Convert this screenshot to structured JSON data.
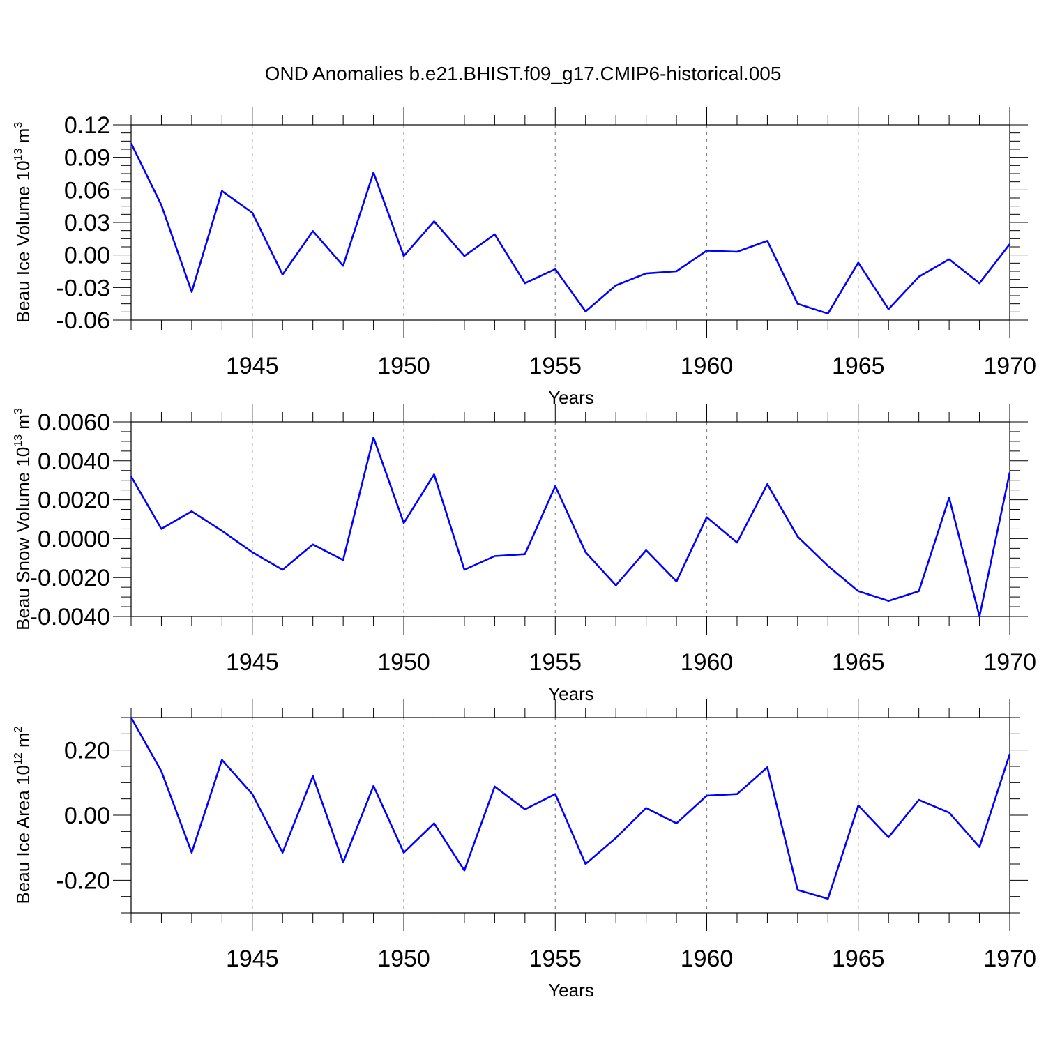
{
  "title": "OND Anomalies b.e21.BHIST.f09_g17.CMIP6-historical.005",
  "colors": {
    "line": "#0000ff",
    "axis": "#000000",
    "grid": "#888888"
  },
  "chart_data": [
    {
      "type": "line",
      "name": "ice-volume",
      "ylabel": "Beau Ice Volume 10",
      "ylabel_exp": "13",
      "ylabel_unit": " m",
      "ylabel_unit_exp": "3",
      "xlabel": "Years",
      "xlim": [
        1941,
        1970
      ],
      "ylim": [
        -0.06,
        0.12
      ],
      "yticks": [
        0.12,
        0.09,
        0.06,
        0.03,
        0.0,
        -0.03,
        -0.06
      ],
      "ytick_labels": [
        "0.12",
        "0.09",
        "0.06",
        "0.03",
        "0.00",
        "-0.03",
        "-0.06"
      ],
      "xticks": [
        1945,
        1950,
        1955,
        1960,
        1965,
        1970
      ],
      "xtick_labels": [
        "1945",
        "1950",
        "1955",
        "1960",
        "1965",
        "1970"
      ],
      "x": [
        1941,
        1942,
        1943,
        1944,
        1945,
        1946,
        1947,
        1948,
        1949,
        1950,
        1951,
        1952,
        1953,
        1954,
        1955,
        1956,
        1957,
        1958,
        1959,
        1960,
        1961,
        1962,
        1963,
        1964,
        1965,
        1966,
        1967,
        1968,
        1969,
        1970
      ],
      "values": [
        0.103,
        0.046,
        -0.034,
        0.059,
        0.039,
        -0.018,
        0.022,
        -0.01,
        0.076,
        -0.001,
        0.031,
        -0.001,
        0.019,
        -0.026,
        -0.013,
        -0.052,
        -0.028,
        -0.017,
        -0.015,
        0.004,
        0.003,
        0.013,
        -0.045,
        -0.054,
        -0.007,
        -0.05,
        -0.02,
        -0.004,
        -0.026,
        0.01
      ]
    },
    {
      "type": "line",
      "name": "snow-volume",
      "ylabel": "Beau Snow Volume 10",
      "ylabel_exp": "13",
      "ylabel_unit": " m",
      "ylabel_unit_exp": "3",
      "xlabel": "Years",
      "xlim": [
        1941,
        1970
      ],
      "ylim": [
        -0.004,
        0.006
      ],
      "yticks": [
        0.006,
        0.004,
        0.002,
        0.0,
        -0.002,
        -0.004
      ],
      "ytick_labels": [
        "0.0060",
        "0.0040",
        "0.0020",
        "0.0000",
        "-0.0020",
        "-0.0040"
      ],
      "xticks": [
        1945,
        1950,
        1955,
        1960,
        1965,
        1970
      ],
      "xtick_labels": [
        "1945",
        "1950",
        "1955",
        "1960",
        "1965",
        "1970"
      ],
      "x": [
        1941,
        1942,
        1943,
        1944,
        1945,
        1946,
        1947,
        1948,
        1949,
        1950,
        1951,
        1952,
        1953,
        1954,
        1955,
        1956,
        1957,
        1958,
        1959,
        1960,
        1961,
        1962,
        1963,
        1964,
        1965,
        1966,
        1967,
        1968,
        1969,
        1970
      ],
      "values": [
        0.0032,
        0.0005,
        0.0014,
        0.0004,
        -0.0007,
        -0.0016,
        -0.0003,
        -0.0011,
        0.0052,
        0.0008,
        0.0033,
        -0.0016,
        -0.0009,
        -0.0008,
        0.0027,
        -0.0007,
        -0.0024,
        -0.0006,
        -0.0022,
        0.0011,
        -0.0002,
        0.0028,
        0.0001,
        -0.0014,
        -0.0027,
        -0.0032,
        -0.0027,
        0.0021,
        -0.004,
        0.0034
      ]
    },
    {
      "type": "line",
      "name": "ice-area",
      "ylabel": "Beau Ice Area 10",
      "ylabel_exp": "12",
      "ylabel_unit": " m",
      "ylabel_unit_exp": "2",
      "xlabel": "Years",
      "xlim": [
        1941,
        1970
      ],
      "ylim": [
        -0.3,
        0.3
      ],
      "yticks": [
        0.2,
        0.0,
        -0.2
      ],
      "ytick_labels": [
        "0.20",
        "0.00",
        "-0.20"
      ],
      "xticks": [
        1945,
        1950,
        1955,
        1960,
        1965,
        1970
      ],
      "xtick_labels": [
        "1945",
        "1950",
        "1955",
        "1960",
        "1965",
        "1970"
      ],
      "x": [
        1941,
        1942,
        1943,
        1944,
        1945,
        1946,
        1947,
        1948,
        1949,
        1950,
        1951,
        1952,
        1953,
        1954,
        1955,
        1956,
        1957,
        1958,
        1959,
        1960,
        1961,
        1962,
        1963,
        1964,
        1965,
        1966,
        1967,
        1968,
        1969,
        1970
      ],
      "values": [
        0.3,
        0.135,
        -0.115,
        0.17,
        0.065,
        -0.115,
        0.12,
        -0.145,
        0.09,
        -0.115,
        -0.025,
        -0.17,
        0.088,
        0.018,
        0.065,
        -0.15,
        -0.07,
        0.022,
        -0.025,
        0.06,
        0.065,
        0.147,
        -0.23,
        -0.257,
        0.03,
        -0.068,
        0.047,
        0.008,
        -0.098,
        0.188
      ]
    }
  ]
}
